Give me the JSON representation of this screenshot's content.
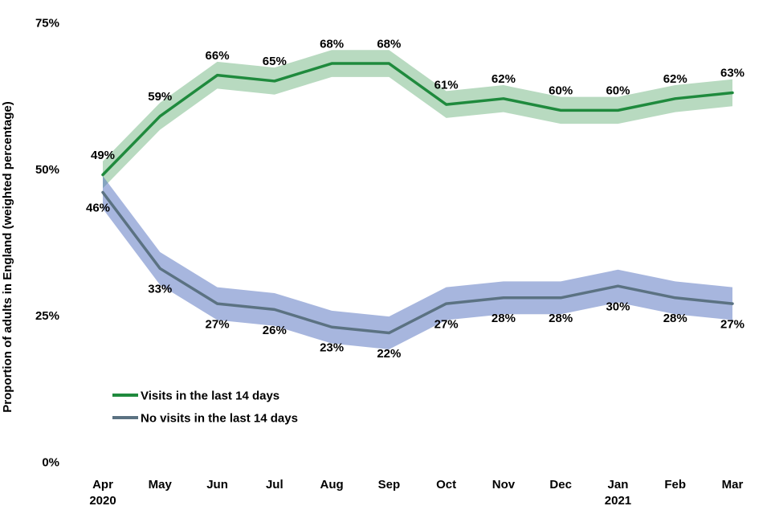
{
  "chart_data": {
    "type": "line",
    "title": "",
    "ylabel": "Proportion of adults in England (weighted percentage)",
    "xlabel": "",
    "x_labels": [
      "Apr",
      "May",
      "Jun",
      "Jul",
      "Aug",
      "Sep",
      "Oct",
      "Nov",
      "Dec",
      "Jan",
      "Feb",
      "Mar"
    ],
    "x_year_labels": {
      "0": "2020",
      "9": "2021"
    },
    "y_ticks": [
      0,
      25,
      50,
      75
    ],
    "y_tick_labels": [
      "0%",
      "25%",
      "50%",
      "75%"
    ],
    "ylim": [
      0,
      75
    ],
    "grid": false,
    "legend_position": "inside-bottom-left",
    "series": [
      {
        "name": "Visits in the last 14 days",
        "color": "#1f8a3d",
        "band_color": "rgba(34,139,59,0.32)",
        "band_halfwidth": 2.3,
        "values": [
          49,
          59,
          66,
          65,
          68,
          68,
          61,
          62,
          60,
          60,
          62,
          63
        ],
        "point_labels": [
          "49%",
          "59%",
          "66%",
          "65%",
          "68%",
          "68%",
          "61%",
          "62%",
          "60%",
          "60%",
          "62%",
          "63%"
        ]
      },
      {
        "name": "No visits in the last 14 days",
        "color": "#5b7282",
        "band_color": "rgba(80,110,190,0.5)",
        "band_halfwidth": 2.8,
        "values": [
          46,
          33,
          27,
          26,
          23,
          22,
          27,
          28,
          28,
          30,
          28,
          27
        ],
        "point_labels": [
          "46%",
          "33%",
          "27%",
          "26%",
          "23%",
          "22%",
          "27%",
          "28%",
          "28%",
          "30%",
          "28%",
          "27%"
        ]
      }
    ]
  }
}
